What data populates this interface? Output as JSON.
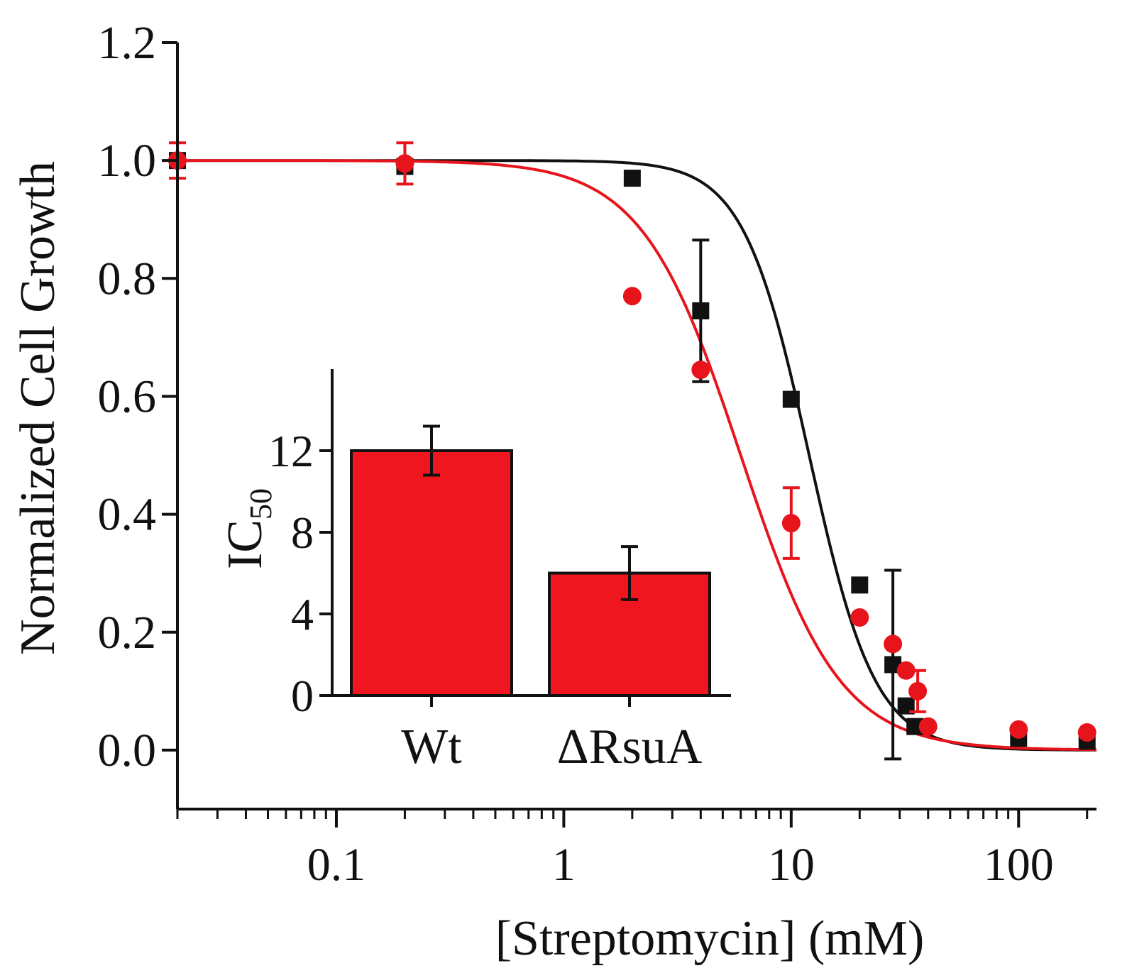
{
  "chart_data": {
    "main": {
      "type": "scatter",
      "xlabel": "[Streptomycin] (mM)",
      "ylabel": "Normalized Cell Growth",
      "x_scale": "log",
      "xlim": [
        0.02,
        220
      ],
      "ylim": [
        -0.1,
        1.2
      ],
      "xticks": [
        0.1,
        1,
        10,
        100
      ],
      "xtick_labels": [
        "0.1",
        "1",
        "10",
        "100"
      ],
      "yticks": [
        0.0,
        0.2,
        0.4,
        0.6,
        0.8,
        1.0,
        1.2
      ],
      "ytick_labels": [
        "0.0",
        "0.2",
        "0.4",
        "0.6",
        "0.8",
        "1.0",
        "1.2"
      ],
      "series": [
        {
          "name": "Wt",
          "color": "#111111",
          "marker": "square",
          "points": [
            {
              "x": 0.02,
              "y": 1.0,
              "err": 0.0
            },
            {
              "x": 0.2,
              "y": 0.99,
              "err": 0.0
            },
            {
              "x": 2,
              "y": 0.97,
              "err": 0.0
            },
            {
              "x": 4,
              "y": 0.745,
              "err": 0.12
            },
            {
              "x": 10,
              "y": 0.595,
              "err": 0.0
            },
            {
              "x": 20,
              "y": 0.28,
              "err": 0.0
            },
            {
              "x": 28,
              "y": 0.145,
              "err": 0.16
            },
            {
              "x": 32,
              "y": 0.075,
              "err": 0.0
            },
            {
              "x": 35,
              "y": 0.04,
              "err": 0.0
            },
            {
              "x": 100,
              "y": 0.02,
              "err": 0.0
            },
            {
              "x": 200,
              "y": 0.015,
              "err": 0.0
            }
          ],
          "fit": {
            "model": "hill",
            "ic50": 12.0,
            "hill": 3.0,
            "top": 1.0,
            "bottom": 0.0
          }
        },
        {
          "name": "ΔRsuA",
          "color": "#e8141c",
          "marker": "circle",
          "points": [
            {
              "x": 0.02,
              "y": 1.0,
              "err": 0.03
            },
            {
              "x": 0.2,
              "y": 0.995,
              "err": 0.035
            },
            {
              "x": 2,
              "y": 0.77,
              "err": 0.0
            },
            {
              "x": 4,
              "y": 0.645,
              "err": 0.0
            },
            {
              "x": 10,
              "y": 0.385,
              "err": 0.06
            },
            {
              "x": 20,
              "y": 0.225,
              "err": 0.0
            },
            {
              "x": 28,
              "y": 0.18,
              "err": 0.0
            },
            {
              "x": 32,
              "y": 0.135,
              "err": 0.0
            },
            {
              "x": 36,
              "y": 0.1,
              "err": 0.035
            },
            {
              "x": 40,
              "y": 0.04,
              "err": 0.0
            },
            {
              "x": 100,
              "y": 0.035,
              "err": 0.0
            },
            {
              "x": 200,
              "y": 0.03,
              "err": 0.0
            }
          ],
          "fit": {
            "model": "hill",
            "ic50": 6.0,
            "hill": 2.0,
            "top": 1.0,
            "bottom": 0.0
          }
        }
      ]
    },
    "inset": {
      "type": "bar",
      "ylabel": "IC",
      "ylabel_sub": "50",
      "categories": [
        "Wt",
        "ΔRsuA"
      ],
      "values": [
        12.0,
        6.0
      ],
      "errors": [
        1.2,
        1.3
      ],
      "ylim": [
        0,
        16
      ],
      "yticks": [
        0,
        4,
        8,
        12
      ],
      "ytick_labels": [
        "0",
        "4",
        "8",
        "12"
      ],
      "bar_color": "#f01620"
    }
  }
}
